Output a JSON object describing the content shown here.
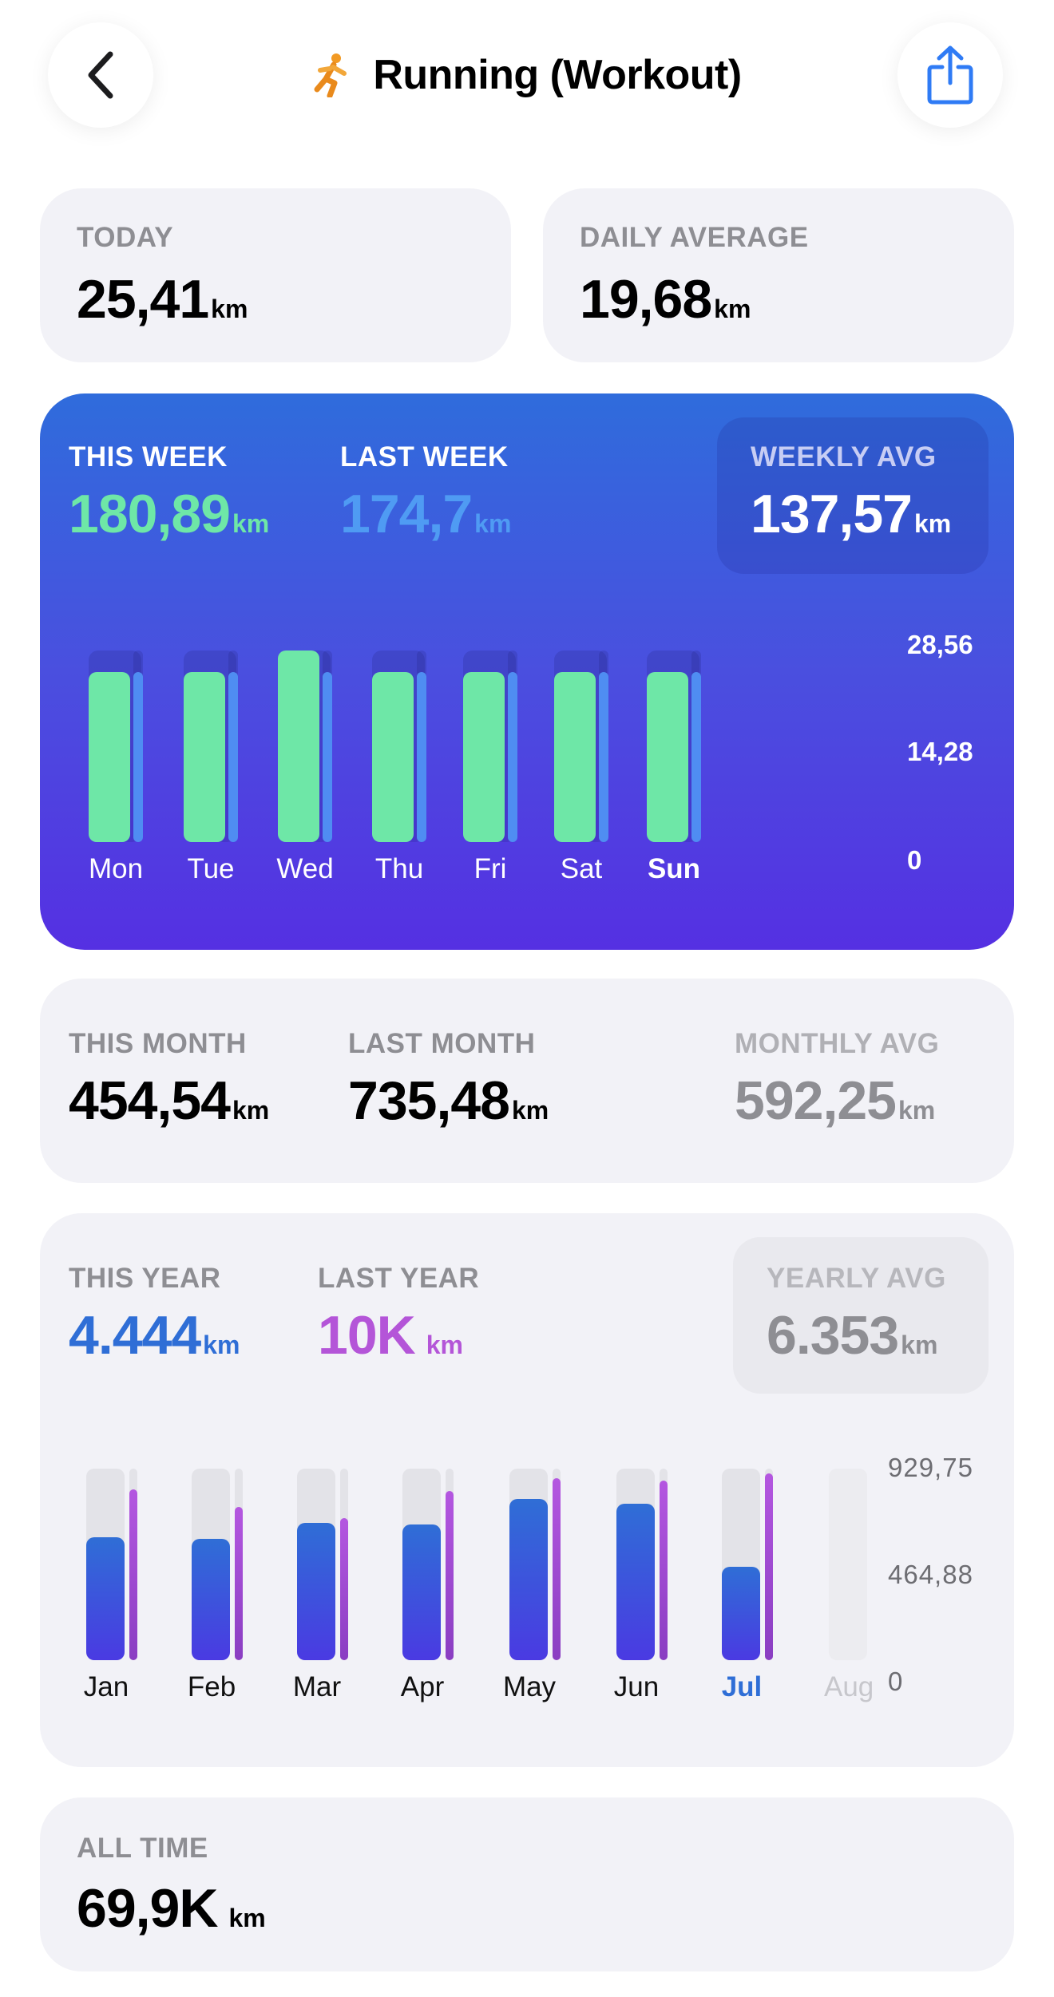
{
  "header": {
    "title": "Running (Workout)",
    "back_icon": "chevron-left-icon",
    "run_icon": "running-figure-icon",
    "share_icon": "share-icon"
  },
  "today": {
    "label": "TODAY",
    "value": "25,41",
    "unit": "km"
  },
  "daily_avg": {
    "label": "DAILY AVERAGE",
    "value": "19,68",
    "unit": "km"
  },
  "week": {
    "this_label": "THIS WEEK",
    "this_value": "180,89",
    "this_unit": "km",
    "last_label": "LAST WEEK",
    "last_value": "174,7",
    "last_unit": "km",
    "avg_label": "WEEKLY AVG",
    "avg_value": "137,57",
    "avg_unit": "km",
    "colors": {
      "this_week": "#6ee7a7",
      "last_week": "#4f8df2"
    }
  },
  "month": {
    "this_label": "THIS MONTH",
    "this_value": "454,54",
    "this_unit": "km",
    "last_label": "LAST MONTH",
    "last_value": "735,48",
    "last_unit": "km",
    "avg_label": "MONTHLY AVG",
    "avg_value": "592,25",
    "avg_unit": "km"
  },
  "year": {
    "this_label": "THIS YEAR",
    "this_value": "4.444",
    "this_unit": "km",
    "last_label": "LAST YEAR",
    "last_value": "10K",
    "last_unit": "km",
    "avg_label": "YEARLY AVG",
    "avg_value": "6.353",
    "avg_unit": "km",
    "colors": {
      "this_year": "#3d4fe0",
      "last_year": "#a347d6",
      "selected": "#2f6ed6"
    }
  },
  "all_time": {
    "label": "ALL TIME",
    "value": "69,9K",
    "unit": "km"
  },
  "chart_data": [
    {
      "type": "bar",
      "categories": [
        "Mon",
        "Tue",
        "Wed",
        "Thu",
        "Fri",
        "Sat",
        "Sun"
      ],
      "selected": "Sun",
      "series": [
        {
          "values": [
            25.4,
            25.4,
            28.56,
            25.4,
            25.4,
            25.4,
            25.4
          ]
        },
        {
          "values": [
            25.4,
            25.4,
            25.4,
            25.4,
            25.4,
            25.4,
            25.4
          ]
        }
      ],
      "yticks": [
        "28,56",
        "14,28",
        "0"
      ],
      "ylim": [
        0,
        28.56
      ]
    },
    {
      "type": "bar",
      "categories": [
        "Jan",
        "Feb",
        "Mar",
        "Apr",
        "May",
        "Jun",
        "Jul",
        "Aug"
      ],
      "selected": "Jul",
      "series": [
        {
          "values": [
            595,
            590,
            665,
            660,
            782,
            760,
            455,
            null
          ]
        },
        {
          "values": [
            830,
            745,
            690,
            820,
            885,
            870,
            905,
            null
          ]
        }
      ],
      "yticks": [
        "929,75",
        "464,88",
        "0"
      ],
      "ylim": [
        0,
        929.75
      ]
    }
  ]
}
